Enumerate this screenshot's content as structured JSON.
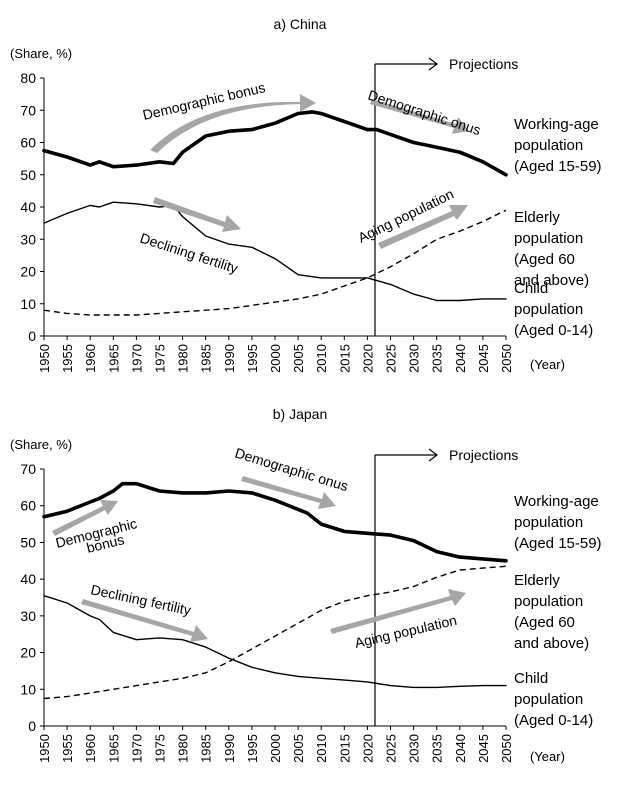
{
  "chart_data": [
    {
      "type": "line",
      "title": "a) China",
      "ylabel": "(Share, %)",
      "xlabel": "(Year)",
      "ylim": [
        0,
        80
      ],
      "yticks": [
        0,
        10,
        20,
        30,
        40,
        50,
        60,
        70,
        80
      ],
      "xlim": [
        1950,
        2050
      ],
      "xticks": [
        1950,
        1955,
        1960,
        1965,
        1970,
        1975,
        1980,
        1985,
        1990,
        1995,
        2000,
        2005,
        2010,
        2015,
        2020,
        2025,
        2030,
        2035,
        2040,
        2045,
        2050
      ],
      "projection_start": 2022,
      "projection_label": "Projections",
      "series": [
        {
          "name": "Working-age population (Aged 15-59)",
          "label_lines": [
            "Working-age",
            "population",
            "(Aged 15-59)"
          ],
          "style": "thick",
          "x": [
            1950,
            1955,
            1960,
            1962,
            1965,
            1970,
            1975,
            1978,
            1980,
            1985,
            1990,
            1995,
            2000,
            2005,
            2008,
            2010,
            2012,
            2015,
            2020,
            2022,
            2025,
            2030,
            2035,
            2040,
            2045,
            2050
          ],
          "y": [
            57.5,
            55.5,
            53,
            54,
            52.5,
            53,
            54,
            53.5,
            57,
            62,
            63.5,
            64,
            66,
            69,
            69.5,
            69,
            68,
            66.5,
            64,
            64,
            62.5,
            60,
            58.5,
            57,
            54,
            50
          ]
        },
        {
          "name": "Elderly population (Aged 60 and above)",
          "label_lines": [
            "Elderly",
            "population",
            "(Aged 60",
            "and above)"
          ],
          "style": "dashed",
          "x": [
            1950,
            1955,
            1960,
            1965,
            1970,
            1975,
            1980,
            1985,
            1990,
            1995,
            2000,
            2005,
            2010,
            2015,
            2020,
            2025,
            2030,
            2035,
            2040,
            2045,
            2050
          ],
          "y": [
            8,
            7,
            6.5,
            6.5,
            6.5,
            7,
            7.5,
            8,
            8.5,
            9.5,
            10.5,
            11.5,
            13,
            15.5,
            18,
            21.5,
            25.5,
            30,
            32.5,
            35.5,
            39
          ]
        },
        {
          "name": "Child population (Aged 0-14)",
          "label_lines": [
            "Child",
            "population",
            "(Aged 0-14)"
          ],
          "style": "thin",
          "x": [
            1950,
            1955,
            1960,
            1962,
            1965,
            1970,
            1975,
            1978,
            1980,
            1985,
            1990,
            1995,
            2000,
            2005,
            2010,
            2015,
            2020,
            2025,
            2030,
            2035,
            2040,
            2045,
            2050
          ],
          "y": [
            35,
            38,
            40.5,
            40,
            41.5,
            41,
            40,
            40.5,
            37,
            31,
            28.5,
            27.5,
            24,
            19,
            18,
            18,
            18,
            16,
            13,
            11,
            11,
            11.5,
            11.5
          ]
        }
      ],
      "annotations": [
        {
          "text": "Demographic bonus"
        },
        {
          "text": "Demographic onus"
        },
        {
          "text": "Declining fertility"
        },
        {
          "text": "Aging population"
        }
      ]
    },
    {
      "type": "line",
      "title": "b) Japan",
      "ylabel": "(Share, %)",
      "xlabel": "(Year)",
      "ylim": [
        0,
        70
      ],
      "yticks": [
        0,
        10,
        20,
        30,
        40,
        50,
        60,
        70
      ],
      "xlim": [
        1950,
        2050
      ],
      "xticks": [
        1950,
        1955,
        1960,
        1965,
        1970,
        1975,
        1980,
        1985,
        1990,
        1995,
        2000,
        2005,
        2010,
        2015,
        2020,
        2025,
        2030,
        2035,
        2040,
        2045,
        2050
      ],
      "projection_start": 2022,
      "projection_label": "Projections",
      "series": [
        {
          "name": "Working-age population (Aged 15-59)",
          "label_lines": [
            "Working-age",
            "population",
            "(Aged 15-59)"
          ],
          "style": "thick",
          "x": [
            1950,
            1955,
            1960,
            1962,
            1965,
            1967,
            1970,
            1975,
            1980,
            1985,
            1990,
            1995,
            2000,
            2005,
            2007,
            2010,
            2015,
            2020,
            2025,
            2030,
            2035,
            2040,
            2045,
            2050
          ],
          "y": [
            57,
            58.5,
            61,
            62,
            64,
            66,
            66,
            64,
            63.5,
            63.5,
            64,
            63.5,
            61.5,
            59,
            58,
            55,
            53,
            52.5,
            52,
            50.5,
            47.5,
            46,
            45.5,
            45
          ]
        },
        {
          "name": "Elderly population (Aged 60 and above)",
          "label_lines": [
            "Elderly",
            "population",
            "(Aged 60",
            "and above)"
          ],
          "style": "dashed",
          "x": [
            1950,
            1955,
            1960,
            1965,
            1970,
            1975,
            1980,
            1985,
            1990,
            1995,
            2000,
            2005,
            2010,
            2015,
            2020,
            2025,
            2030,
            2035,
            2040,
            2045,
            2050
          ],
          "y": [
            7.5,
            8,
            9,
            10,
            11,
            12,
            13,
            14.5,
            17.5,
            21,
            24.5,
            28,
            31.5,
            34,
            35.5,
            36.5,
            38,
            40.5,
            42.5,
            43,
            43.5
          ]
        },
        {
          "name": "Child population (Aged 0-14)",
          "label_lines": [
            "Child",
            "population",
            "(Aged 0-14)"
          ],
          "style": "thin",
          "x": [
            1950,
            1955,
            1960,
            1962,
            1965,
            1970,
            1975,
            1980,
            1985,
            1990,
            1995,
            2000,
            2005,
            2010,
            2015,
            2020,
            2025,
            2030,
            2035,
            2040,
            2045,
            2050
          ],
          "y": [
            35.5,
            33.5,
            30,
            29,
            25.5,
            23.5,
            24,
            23.5,
            21.5,
            18.5,
            16,
            14.5,
            13.5,
            13,
            12.5,
            12,
            11,
            10.5,
            10.5,
            10.8,
            11,
            11
          ]
        }
      ],
      "annotations": [
        {
          "text": "Demographic bonus",
          "lines": [
            "Demographic",
            "bonus"
          ]
        },
        {
          "text": "Demographic onus"
        },
        {
          "text": "Declining fertility"
        },
        {
          "text": "Aging population"
        }
      ]
    }
  ]
}
